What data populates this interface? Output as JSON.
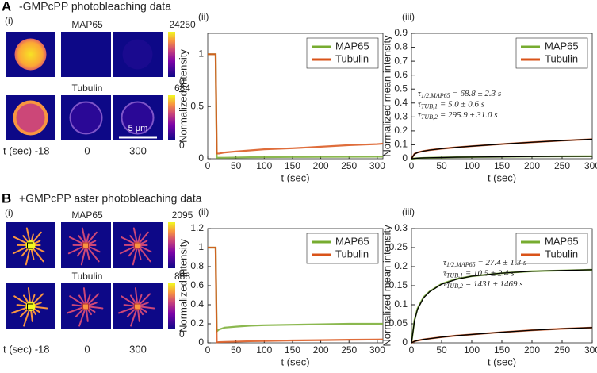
{
  "panels": [
    {
      "letter": "A",
      "title": "-GMPcPP photobleaching data",
      "sub": "(i)",
      "rows": [
        "MAP65",
        "Tubulin"
      ],
      "colorbars": [
        [
          24250,
          0
        ],
        [
          684,
          0
        ]
      ],
      "scale_bar": "5 μm",
      "time_label": "t (sec) -18",
      "times": [
        "0",
        "300"
      ]
    },
    {
      "letter": "B",
      "title": "+GMPcPP aster photobleaching data",
      "sub": "(i)",
      "rows": [
        "MAP65",
        "Tubulin"
      ],
      "colorbars": [
        [
          2095,
          0
        ],
        [
          888,
          0
        ]
      ],
      "time_label": "t (sec) -18",
      "times": [
        "0",
        "300"
      ]
    }
  ],
  "chart_data": [
    {
      "type": "line",
      "panel_label": "(ii)",
      "x_label": "t (sec)",
      "y_label": "Normalized Intensity",
      "x": [
        0,
        5,
        10,
        14,
        16,
        20,
        30,
        50,
        75,
        100,
        150,
        200,
        250,
        300,
        310
      ],
      "series": [
        {
          "name": "MAP65",
          "color": "#77ac30",
          "values": [
            1,
            1,
            1,
            1,
            0.01,
            0.01,
            0.01,
            0.012,
            0.014,
            0.015,
            0.017,
            0.018,
            0.019,
            0.02,
            0.02
          ]
        },
        {
          "name": "Tubulin",
          "color": "#d95319",
          "values": [
            1,
            1,
            1,
            1,
            0.05,
            0.05,
            0.06,
            0.07,
            0.08,
            0.09,
            0.1,
            0.115,
            0.13,
            0.14,
            0.145
          ]
        }
      ],
      "xlim": [
        0,
        310
      ],
      "xticks": [
        0,
        50,
        100,
        150,
        200,
        250,
        300
      ],
      "ylim": [
        0,
        1.2
      ],
      "yticks": [
        0,
        0.5,
        1
      ],
      "legend": "northeast"
    },
    {
      "type": "line",
      "panel_label": "(iii)",
      "x_label": "t (sec)",
      "y_label": "Normalized mean intensity",
      "x": [
        0,
        5,
        10,
        20,
        30,
        50,
        75,
        100,
        150,
        200,
        250,
        300
      ],
      "series": [
        {
          "name": "MAP65",
          "color": "#77ac30",
          "values": [
            0,
            0.002,
            0.004,
            0.006,
            0.007,
            0.009,
            0.011,
            0.012,
            0.014,
            0.016,
            0.017,
            0.018
          ]
        },
        {
          "name": "Tubulin",
          "color": "#d95319",
          "values": [
            0,
            0.035,
            0.045,
            0.055,
            0.062,
            0.072,
            0.082,
            0.09,
            0.105,
            0.118,
            0.13,
            0.14
          ]
        },
        {
          "color": "#000000",
          "values": [
            0,
            0.002,
            0.004,
            0.006,
            0.007,
            0.009,
            0.011,
            0.012,
            0.014,
            0.016,
            0.017,
            0.018
          ]
        },
        {
          "color": "#000000",
          "values": [
            0,
            0.034,
            0.044,
            0.055,
            0.062,
            0.072,
            0.082,
            0.09,
            0.105,
            0.118,
            0.13,
            0.14
          ]
        }
      ],
      "annotations": [
        {
          "symbol": "τ",
          "sub": "1/2,MAP65",
          "text": " = 68.8 ± 2.3 s"
        },
        {
          "symbol": "τ",
          "sub": "TUB,1",
          "text": " = 5.0 ± 0.6 s"
        },
        {
          "symbol": "τ",
          "sub": "TUB,2",
          "text": " = 295.9 ± 31.0 s"
        }
      ],
      "xlim": [
        0,
        300
      ],
      "xticks": [
        0,
        50,
        100,
        150,
        200,
        250,
        300
      ],
      "ylim": [
        0,
        0.9
      ],
      "yticks": [
        0,
        0.1,
        0.2,
        0.3,
        0.4,
        0.5,
        0.6,
        0.7,
        0.8,
        0.9
      ],
      "legend": "northeast"
    },
    {
      "type": "line",
      "panel_label": "(ii)",
      "x_label": "t (sec)",
      "y_label": "Normalized Intensity",
      "x": [
        0,
        5,
        10,
        14,
        16,
        20,
        30,
        50,
        75,
        100,
        150,
        200,
        250,
        300,
        310
      ],
      "series": [
        {
          "name": "MAP65",
          "color": "#77ac30",
          "values": [
            1,
            1,
            1,
            1,
            0.12,
            0.14,
            0.16,
            0.17,
            0.18,
            0.185,
            0.19,
            0.195,
            0.2,
            0.2,
            0.2
          ]
        },
        {
          "name": "Tubulin",
          "color": "#d95319",
          "values": [
            1,
            1,
            1,
            1,
            0.005,
            0.008,
            0.01,
            0.013,
            0.017,
            0.02,
            0.025,
            0.028,
            0.032,
            0.035,
            0.036
          ]
        }
      ],
      "xlim": [
        0,
        310
      ],
      "xticks": [
        0,
        50,
        100,
        150,
        200,
        250,
        300
      ],
      "ylim": [
        0,
        1.2
      ],
      "yticks": [
        0,
        0.2,
        0.4,
        0.6,
        0.8,
        1,
        1.2
      ],
      "legend": "northeast"
    },
    {
      "type": "line",
      "panel_label": "(iii)",
      "x_label": "t (sec)",
      "y_label": "Normalized mean intensity",
      "x": [
        0,
        5,
        10,
        20,
        30,
        50,
        75,
        100,
        150,
        200,
        250,
        300
      ],
      "series": [
        {
          "name": "MAP65",
          "color": "#77ac30",
          "values": [
            0,
            0.06,
            0.09,
            0.12,
            0.135,
            0.155,
            0.168,
            0.175,
            0.183,
            0.188,
            0.19,
            0.192
          ]
        },
        {
          "name": "Tubulin",
          "color": "#d95319",
          "values": [
            0,
            0.004,
            0.006,
            0.009,
            0.011,
            0.015,
            0.019,
            0.022,
            0.028,
            0.033,
            0.037,
            0.04
          ]
        },
        {
          "color": "#000000",
          "values": [
            0,
            0.058,
            0.088,
            0.118,
            0.134,
            0.154,
            0.167,
            0.175,
            0.183,
            0.188,
            0.19,
            0.192
          ]
        },
        {
          "color": "#000000",
          "values": [
            0,
            0.004,
            0.006,
            0.009,
            0.011,
            0.015,
            0.019,
            0.022,
            0.028,
            0.033,
            0.037,
            0.04
          ]
        }
      ],
      "annotations": [
        {
          "symbol": "τ",
          "sub": "1/2,MAP65",
          "text": " = 27.4 ± 1.3 s"
        },
        {
          "symbol": "τ",
          "sub": "TUB,1",
          "text": " = 10.5 ± 2.4 s"
        },
        {
          "symbol": "τ",
          "sub": "TUB,2",
          "text": " = 1431 ± 1469 s"
        }
      ],
      "xlim": [
        0,
        300
      ],
      "xticks": [
        0,
        50,
        100,
        150,
        200,
        250,
        300
      ],
      "ylim": [
        0,
        0.3
      ],
      "yticks": [
        0,
        0.05,
        0.1,
        0.15,
        0.2,
        0.25,
        0.3
      ],
      "legend": "northeast"
    }
  ]
}
